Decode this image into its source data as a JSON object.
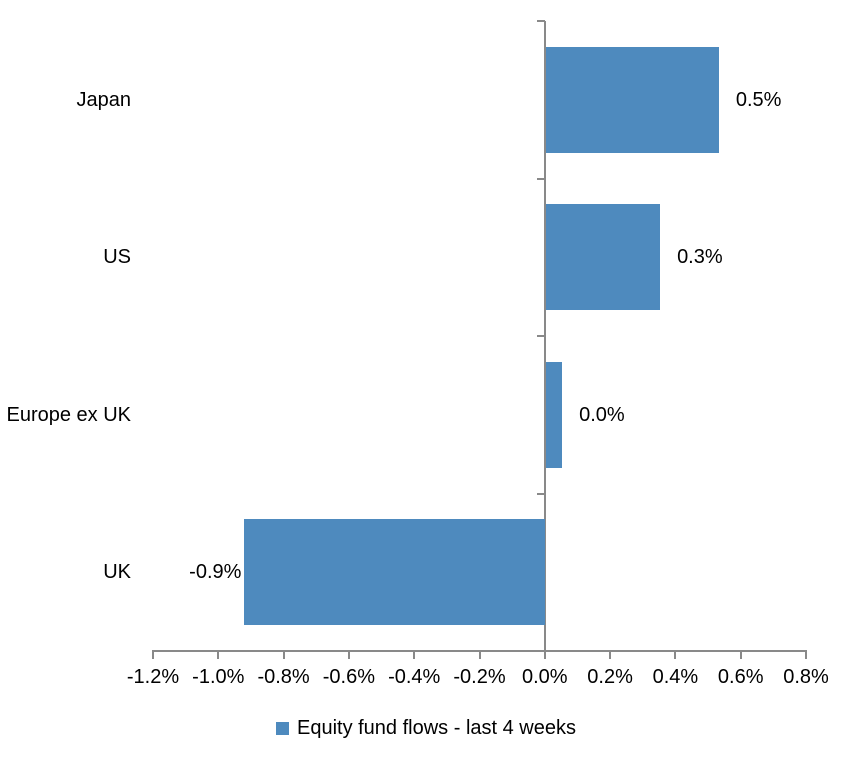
{
  "chart_data": {
    "type": "bar",
    "orientation": "horizontal",
    "title": "",
    "xlabel": "",
    "ylabel": "",
    "categories": [
      "Japan",
      "US",
      "Europe ex UK",
      "UK"
    ],
    "series": [
      {
        "name": "Equity fund flows - last 4 weeks",
        "values": [
          0.5,
          0.3,
          0.0,
          -0.9
        ],
        "data_labels": [
          "0.5%",
          "0.3%",
          "0.0%",
          "-0.9%"
        ],
        "bar_extents_pct": [
          0.53,
          0.35,
          0.05,
          -0.92
        ]
      }
    ],
    "unit": "%",
    "xlim": [
      -1.2,
      0.8
    ],
    "x_tick_step": 0.2,
    "x_tick_labels": [
      "-1.2%",
      "-1.0%",
      "-0.8%",
      "-0.6%",
      "-0.4%",
      "-0.2%",
      "0.0%",
      "0.2%",
      "0.4%",
      "0.6%",
      "0.8%"
    ],
    "grid": false,
    "legend": {
      "position": "bottom",
      "label": "Equity fund flows - last 4 weeks"
    },
    "colors": {
      "bar": "#4E8ABE",
      "axis": "#898989",
      "text": "#000000",
      "background": "#FFFFFF"
    }
  }
}
